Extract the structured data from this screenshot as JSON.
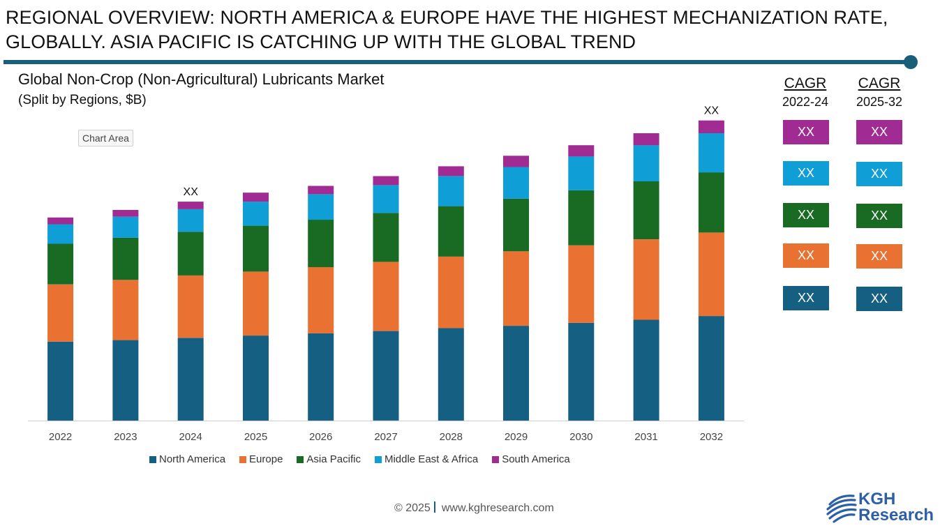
{
  "headline": {
    "line1": "REGIONAL OVERVIEW: NORTH AMERICA & EUROPE HAVE THE HIGHEST MECHANIZATION RATE,",
    "line2": "GLOBALLY. ASIA PACIFIC IS CATCHING UP WITH THE GLOBAL TREND"
  },
  "chart_area_label": "Chart Area",
  "colors": {
    "accent": "#1a5f7a",
    "north_america": "#155f82",
    "europe": "#e97132",
    "asia_pacific": "#196b24",
    "middle_east_africa": "#0f9ed5",
    "south_america": "#a02b93"
  },
  "chart_data": {
    "type": "bar",
    "stacked": true,
    "title": "Global Non-Crop (Non-Agricultural) Lubricants Market",
    "subtitle": "(Split by Regions, $B)",
    "xlabel": "",
    "ylabel": "",
    "grid": false,
    "legend_position": "bottom",
    "categories": [
      "2022",
      "2023",
      "2024",
      "2025",
      "2026",
      "2027",
      "2028",
      "2029",
      "2030",
      "2031",
      "2032"
    ],
    "series": [
      {
        "name": "North America",
        "color": "#155f82",
        "values": [
          105,
          107,
          110,
          113,
          116,
          119,
          123,
          126,
          130,
          134,
          139
        ]
      },
      {
        "name": "Europe",
        "color": "#e97132",
        "values": [
          76,
          80,
          83,
          85,
          88,
          92,
          95,
          99,
          103,
          107,
          111
        ]
      },
      {
        "name": "Asia Pacific",
        "color": "#196b24",
        "values": [
          54,
          56,
          58,
          61,
          63,
          65,
          67,
          70,
          73,
          77,
          80
        ]
      },
      {
        "name": "Middle East & Africa",
        "color": "#0f9ed5",
        "values": [
          26,
          28,
          30,
          32,
          34,
          37,
          40,
          42,
          45,
          48,
          52
        ]
      },
      {
        "name": "South America",
        "color": "#a02b93",
        "values": [
          9,
          9,
          10,
          12,
          11,
          12,
          13,
          15,
          15,
          16,
          17
        ]
      }
    ],
    "ylim": [
      0,
      420
    ],
    "annotations": [
      {
        "category": "2024",
        "text": "XX"
      },
      {
        "category": "2032",
        "text": "XX"
      }
    ]
  },
  "cagr": {
    "col1": {
      "title": "CAGR",
      "period": "2022-24",
      "values": [
        "XX",
        "XX",
        "XX",
        "XX",
        "XX"
      ]
    },
    "col2": {
      "title": "CAGR",
      "period": "2025-32",
      "values": [
        "XX",
        "XX",
        "XX",
        "XX",
        "XX"
      ]
    }
  },
  "footer": {
    "copyright": "© 2025",
    "website": "www.kghresearch.com"
  },
  "logo": {
    "line1": "KGH",
    "line2": "Research"
  }
}
